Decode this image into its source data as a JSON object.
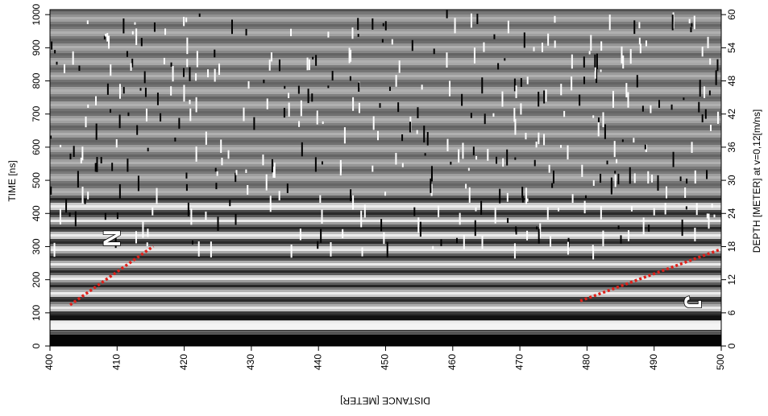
{
  "chart_data": {
    "type": "radargram",
    "xlabel": "DISTANCE [METER]",
    "ylabel": "TIME [ns]",
    "y2label": "DEPTH [METER] at v=0,12[m/ns]",
    "xlim": [
      400,
      500
    ],
    "xticks": [
      400,
      410,
      420,
      430,
      440,
      450,
      460,
      470,
      480,
      490,
      500
    ],
    "ylim": [
      0,
      1015
    ],
    "yticks": [
      0,
      100,
      200,
      300,
      400,
      500,
      600,
      700,
      800,
      900,
      1000
    ],
    "y2lim": [
      0,
      60.9
    ],
    "y2ticks": [
      0,
      6,
      12,
      18,
      24,
      30,
      36,
      42,
      48,
      54,
      60
    ],
    "annotations": [
      {
        "text": "N",
        "x": [
          403,
          415.4
        ],
        "y": [
          124,
          301
        ],
        "color": "#e0201a"
      },
      {
        "text": "J",
        "x": [
          479,
          499.8
        ],
        "y": [
          136,
          291
        ],
        "color": "#e0201a"
      }
    ]
  }
}
